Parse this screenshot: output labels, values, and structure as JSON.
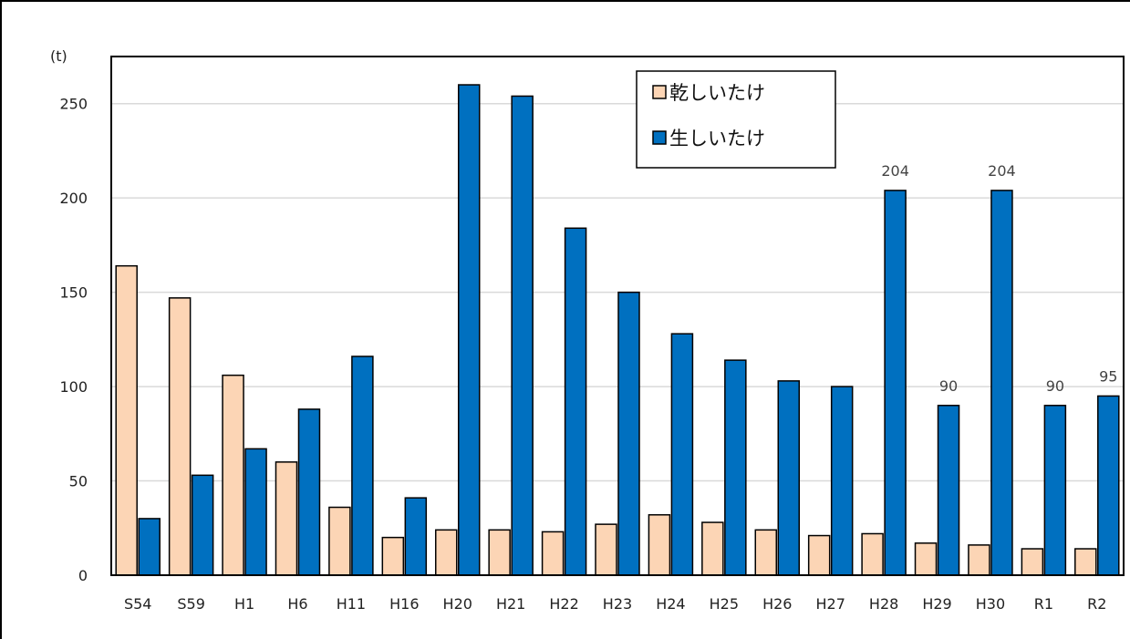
{
  "chart_data": {
    "type": "bar",
    "unit_label": "(t)",
    "categories": [
      "S54",
      "S59",
      "H1",
      "H6",
      "H11",
      "H16",
      "H20",
      "H21",
      "H22",
      "H23",
      "H24",
      "H25",
      "H26",
      "H27",
      "H28",
      "H29",
      "H30",
      "R1",
      "R2"
    ],
    "series": [
      {
        "name": "乾しいたけ",
        "color": "#fcd5b5",
        "values": [
          164,
          147,
          106,
          60,
          36,
          20,
          24,
          24,
          23,
          27,
          32,
          28,
          24,
          21,
          22,
          17,
          16,
          14,
          14
        ]
      },
      {
        "name": "生しいたけ",
        "color": "#0070c0",
        "values": [
          30,
          53,
          67,
          88,
          116,
          41,
          260,
          254,
          184,
          150,
          128,
          114,
          103,
          100,
          204,
          90,
          204,
          90,
          95
        ]
      }
    ],
    "data_labels": [
      {
        "category": "H28",
        "series": "生しいたけ",
        "text": "204"
      },
      {
        "category": "H29",
        "series": "生しいたけ",
        "text": "90"
      },
      {
        "category": "H30",
        "series": "生しいたけ",
        "text": "204"
      },
      {
        "category": "R1",
        "series": "生しいたけ",
        "text": "90"
      },
      {
        "category": "R2",
        "series": "生しいたけ",
        "text": "95"
      }
    ],
    "y_ticks": [
      0,
      50,
      100,
      150,
      200,
      250
    ],
    "ylim": [
      0,
      275
    ],
    "grid": true,
    "legend_position": "top-center"
  }
}
